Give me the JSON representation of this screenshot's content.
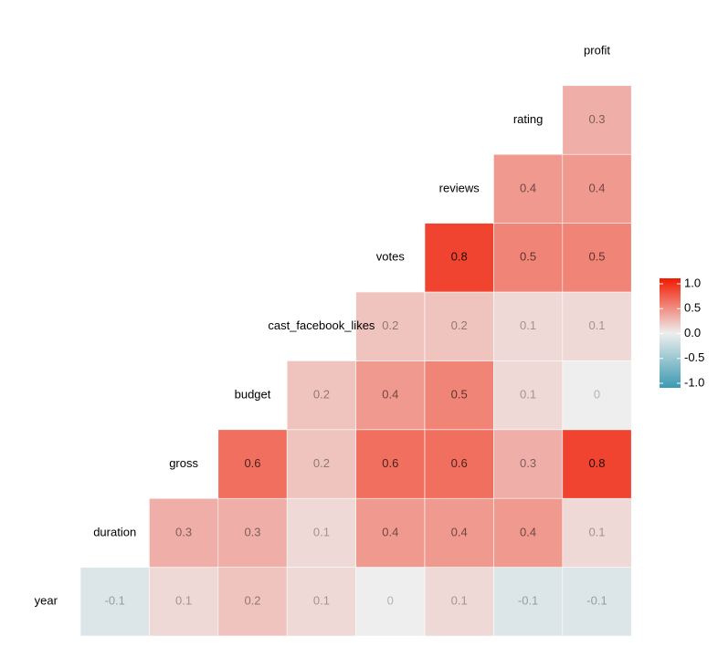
{
  "chart_data": {
    "type": "heatmap",
    "variables": [
      "year",
      "duration",
      "gross",
      "budget",
      "cast_facebook_likes",
      "votes",
      "reviews",
      "rating",
      "profit"
    ],
    "matrix": [
      [
        -0.1,
        0.1,
        0.2,
        0.1,
        0,
        0.1,
        -0.1,
        -0.1
      ],
      [
        0.3,
        0.3,
        0.1,
        0.4,
        0.4,
        0.4,
        0.1
      ],
      [
        0.6,
        0.2,
        0.6,
        0.6,
        0.3,
        0.8
      ],
      [
        0.2,
        0.4,
        0.5,
        0.1,
        0
      ],
      [
        0.2,
        0.2,
        0.1,
        0.1
      ],
      [
        0.8,
        0.5,
        0.5
      ],
      [
        0.4,
        0.4
      ],
      [
        0.3
      ]
    ],
    "colors": {
      "low": "#3B9AB2",
      "mid": "#EEEEEE",
      "high": "#F21A00"
    },
    "legend_lim": [
      -1,
      1
    ],
    "legend_ticks": [
      {
        "value": 1,
        "label": "1.0"
      },
      {
        "value": 0.5,
        "label": "0.5"
      },
      {
        "value": 0,
        "label": "0.0"
      },
      {
        "value": -0.5,
        "label": "-0.5"
      },
      {
        "value": -1,
        "label": "-1.0"
      }
    ]
  }
}
